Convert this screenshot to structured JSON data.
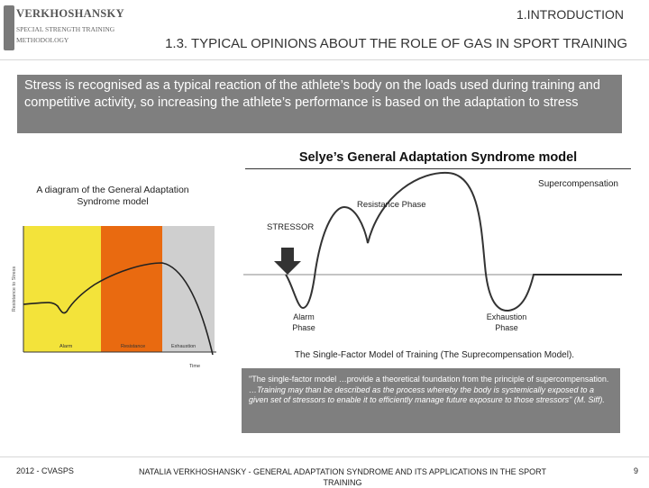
{
  "logo": {
    "name": "VERKHOSHANSKY",
    "line2": "SPECIAL STRENGTH TRAINING",
    "line3": "METHODOLOGY"
  },
  "header": {
    "section": "1.INTRODUCTION",
    "title": "1.3. TYPICAL OPINIONS ABOUT THE ROLE OF GAS IN SPORT TRAINING"
  },
  "intro_text": "Stress is recognised as a typical reaction of the athlete’s body on the loads used during training and competitive activity, so increasing the athlete’s performance is based on the adaptation to stress",
  "model_title": "Selye’s General Adaptation Syndrome model",
  "left_diagram": {
    "caption": "A diagram of the General Adaptation Syndrome model",
    "y_axis_label": "Resistance to Stress",
    "x_axis_label": "Time",
    "phases": [
      "Alarm",
      "Resistance",
      "Exhaustion"
    ],
    "colors": {
      "alarm": "#f3e33a",
      "resistance": "#e96a10",
      "exhaustion": "#cfcfcf"
    }
  },
  "right_diagram": {
    "labels": {
      "supercompensation": "Supercompensation",
      "resistance": "Resistance Phase",
      "stressor": "STRESSOR",
      "alarm_line1": "Alarm",
      "alarm_line2": "Phase",
      "exhaustion_line1": "Exhaustion",
      "exhaustion_line2": "Phase"
    },
    "caption": "The Single-Factor Model of Training (The Suprecompensation Model)."
  },
  "quote": {
    "part1": "\"The single-factor model …provide a theoretical foundation from the principle of supercompensation.",
    "part2": "…Training may than be described as the process whereby the body is systemically exposed to a given set of stressors to enable it to efficiently manage future exposure to those stressors\" (M. Siff)."
  },
  "footer": {
    "left": "2012 - CVASPS",
    "center": "NATALIA VERKHOSHANSKY - GENERAL ADAPTATION SYNDROME AND ITS APPLICATIONS IN THE SPORT TRAINING",
    "page": "9"
  }
}
